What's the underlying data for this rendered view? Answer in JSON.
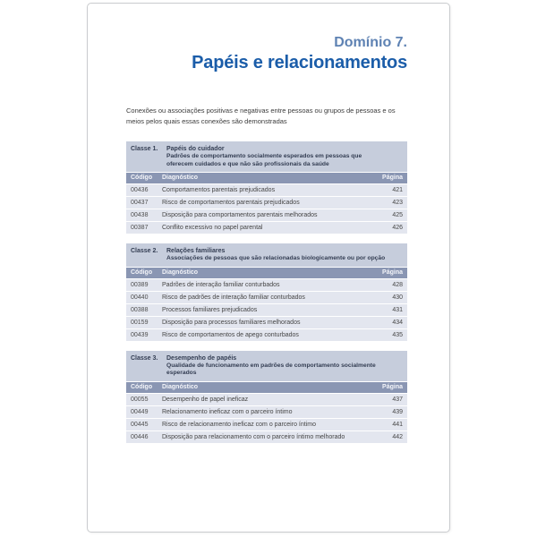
{
  "header": {
    "domain_label": "Domínio 7.",
    "title": "Papéis e relacionamentos",
    "description": "Conexões ou associações positivas e negativas entre pessoas ou grupos de pessoas e os meios pelos quais essas conexões são demonstradas"
  },
  "columns": {
    "code": "Código",
    "diagnosis": "Diagnóstico",
    "page": "Página"
  },
  "classes": [
    {
      "label": "Classe 1.",
      "name": "Papéis do cuidador",
      "subtitle": "Padrões de comportamento socialmente esperados em pessoas que oferecem cuidados e que não são profissionais da saúde",
      "rows": [
        {
          "code": "00436",
          "diagnosis": "Comportamentos parentais prejudicados",
          "page": "421"
        },
        {
          "code": "00437",
          "diagnosis": "Risco de comportamentos parentais prejudicados",
          "page": "423"
        },
        {
          "code": "00438",
          "diagnosis": "Disposição para comportamentos parentais melhorados",
          "page": "425"
        },
        {
          "code": "00387",
          "diagnosis": "Conflito excessivo no papel parental",
          "page": "426"
        }
      ]
    },
    {
      "label": "Classe 2.",
      "name": "Relações familiares",
      "subtitle": "Associações de pessoas que são relacionadas biologicamente ou por opção",
      "rows": [
        {
          "code": "00389",
          "diagnosis": "Padrões de interação familiar conturbados",
          "page": "428"
        },
        {
          "code": "00440",
          "diagnosis": "Risco de padrões de interação familiar conturbados",
          "page": "430"
        },
        {
          "code": "00388",
          "diagnosis": "Processos familiares prejudicados",
          "page": "431"
        },
        {
          "code": "00159",
          "diagnosis": "Disposição para processos familiares melhorados",
          "page": "434"
        },
        {
          "code": "00439",
          "diagnosis": "Risco de comportamentos de apego conturbados",
          "page": "435"
        }
      ]
    },
    {
      "label": "Classe 3.",
      "name": "Desempenho de papéis",
      "subtitle": "Qualidade de funcionamento em padrões de comportamento socialmente esperados",
      "rows": [
        {
          "code": "00055",
          "diagnosis": "Desempenho de papel ineficaz",
          "page": "437"
        },
        {
          "code": "00449",
          "diagnosis": "Relacionamento ineficaz com o parceiro íntimo",
          "page": "439"
        },
        {
          "code": "00445",
          "diagnosis": "Risco de relacionamento ineficaz com o parceiro íntimo",
          "page": "441"
        },
        {
          "code": "00446",
          "diagnosis": "Disposição para relacionamento com o parceiro íntimo melhorado",
          "page": "442"
        }
      ]
    }
  ],
  "colors": {
    "domain_label_blue": "#5e82b3",
    "title_blue": "#1b5da9",
    "class_band_bg": "#c6cddc",
    "column_header_bg": "#8a96b3",
    "row_bg": "#e3e6ef"
  }
}
